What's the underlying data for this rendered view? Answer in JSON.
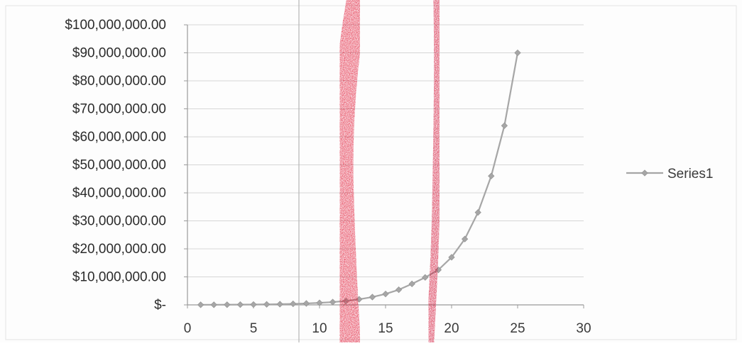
{
  "chart_data": {
    "type": "line",
    "title": "",
    "xlabel": "",
    "ylabel": "",
    "xlim": [
      0,
      30
    ],
    "ylim": [
      0,
      100000000
    ],
    "x_ticks": [
      0,
      5,
      10,
      15,
      20,
      25,
      30
    ],
    "x_tick_labels": [
      "0",
      "5",
      "10",
      "15",
      "20",
      "25",
      "30"
    ],
    "y_ticks": [
      0,
      10000000,
      20000000,
      30000000,
      40000000,
      50000000,
      60000000,
      70000000,
      80000000,
      90000000,
      100000000
    ],
    "y_tick_labels": [
      "$-",
      "$10,000,000.00",
      "$20,000,000.00",
      "$30,000,000.00",
      "$40,000,000.00",
      "$50,000,000.00",
      "$60,000,000.00",
      "$70,000,000.00",
      "$80,000,000.00",
      "$90,000,000.00",
      "$100,000,000.00"
    ],
    "grid": "horizontal",
    "legend": {
      "placement": "right",
      "entries": [
        "Series1"
      ]
    },
    "series": [
      {
        "name": "Series1",
        "color": "#a6a6a6",
        "marker": "diamond",
        "x": [
          1,
          2,
          3,
          4,
          5,
          6,
          7,
          8,
          9,
          10,
          11,
          12,
          13,
          14,
          15,
          16,
          17,
          18,
          19,
          20,
          21,
          22,
          23,
          24,
          25
        ],
        "y": [
          30000,
          45000,
          65000,
          95000,
          130000,
          185000,
          260000,
          370000,
          520000,
          730000,
          1000000,
          1400000,
          2000000,
          2800000,
          3900000,
          5400000,
          7500000,
          9800000,
          12500000,
          17000000,
          23500000,
          33000000,
          46000000,
          64000000,
          90000000
        ]
      }
    ],
    "annotations": [
      {
        "kind": "red-marker-stroke",
        "at_x": 12.2,
        "color": "#e0102e"
      },
      {
        "kind": "red-marker-stroke",
        "at_x": 18.7,
        "color": "#d00a2a"
      }
    ]
  }
}
